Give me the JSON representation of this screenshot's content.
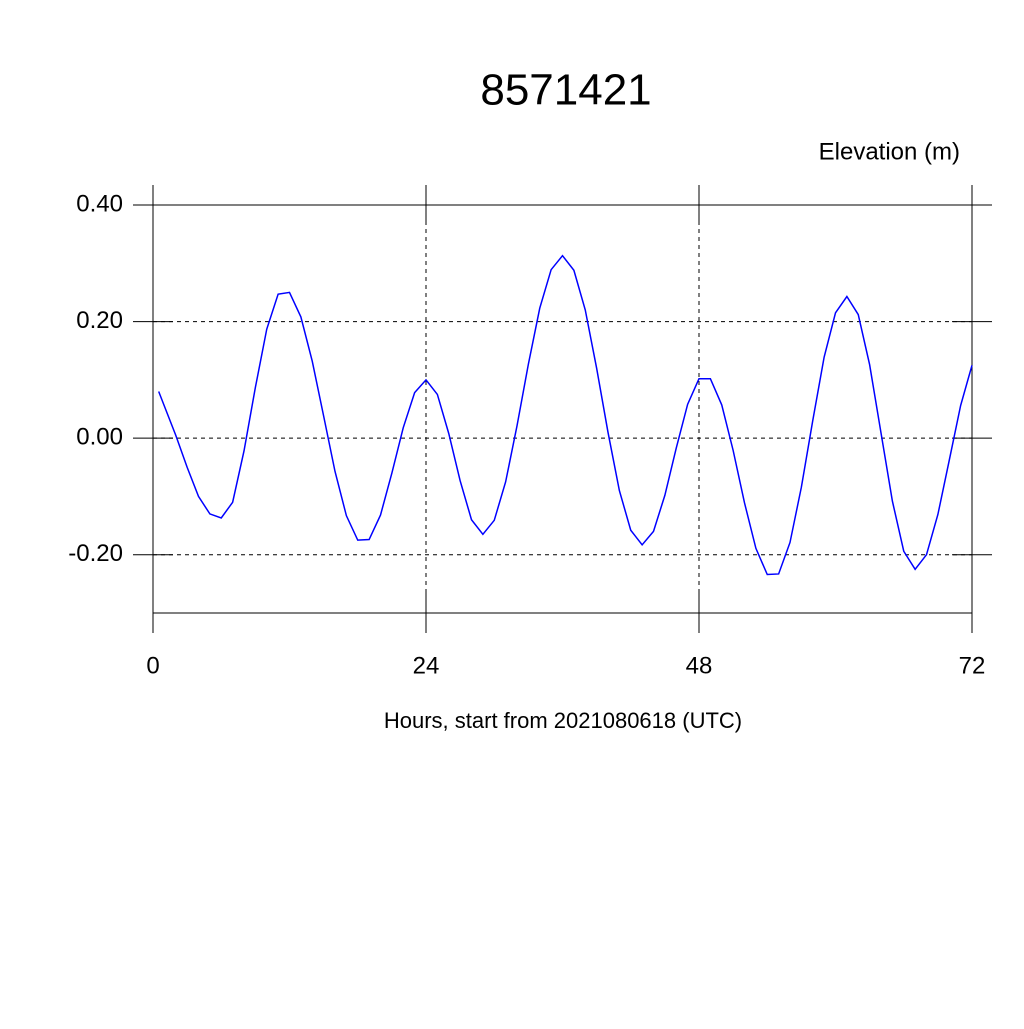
{
  "chart_data": {
    "type": "line",
    "title": "8571421",
    "y_axis_label": "Elevation (m)",
    "x_axis_label": "Hours, start from 2021080618 (UTC)",
    "x": [
      0.5,
      1,
      2,
      3,
      4,
      5,
      6,
      7,
      8,
      9,
      10,
      11,
      12,
      13,
      14,
      15,
      16,
      17,
      18,
      19,
      20,
      21,
      22,
      23,
      24,
      25,
      26,
      27,
      28,
      29,
      30,
      31,
      32,
      33,
      34,
      35,
      36,
      37,
      38,
      39,
      40,
      41,
      42,
      43,
      44,
      45,
      46,
      47,
      48,
      49,
      50,
      51,
      52,
      53,
      54,
      55,
      56,
      57,
      58,
      59,
      60,
      61,
      62,
      63,
      64,
      65,
      66,
      67,
      68,
      69,
      70,
      71,
      72
    ],
    "series": [
      {
        "name": "Elevation",
        "color": "#0000ff",
        "values": [
          0.08,
          0.055,
          0.005,
          -0.05,
          -0.1,
          -0.13,
          -0.137,
          -0.11,
          -0.022,
          0.087,
          0.187,
          0.247,
          0.25,
          0.208,
          0.132,
          0.038,
          -0.057,
          -0.133,
          -0.175,
          -0.174,
          -0.132,
          -0.06,
          0.018,
          0.078,
          0.1,
          0.075,
          0.008,
          -0.073,
          -0.14,
          -0.165,
          -0.141,
          -0.075,
          0.021,
          0.127,
          0.223,
          0.289,
          0.313,
          0.288,
          0.22,
          0.12,
          0.01,
          -0.09,
          -0.158,
          -0.183,
          -0.16,
          -0.098,
          -0.017,
          0.058,
          0.102,
          0.102,
          0.057,
          -0.021,
          -0.111,
          -0.189,
          -0.234,
          -0.233,
          -0.179,
          -0.084,
          0.03,
          0.139,
          0.215,
          0.243,
          0.212,
          0.126,
          0.009,
          -0.108,
          -0.194,
          -0.225,
          -0.2,
          -0.131,
          -0.038,
          0.056,
          0.125
        ]
      }
    ],
    "xlim": [
      0,
      72
    ],
    "xticks": [
      0,
      24,
      48,
      72
    ],
    "ylim": [
      -0.3,
      0.4
    ],
    "yticks": [
      {
        "value": 0.4,
        "label": "0.40"
      },
      {
        "value": 0.2,
        "label": "0.20"
      },
      {
        "value": 0,
        "label": "0.00"
      },
      {
        "value": -0.2,
        "label": "-0.20"
      }
    ],
    "grid": true
  }
}
